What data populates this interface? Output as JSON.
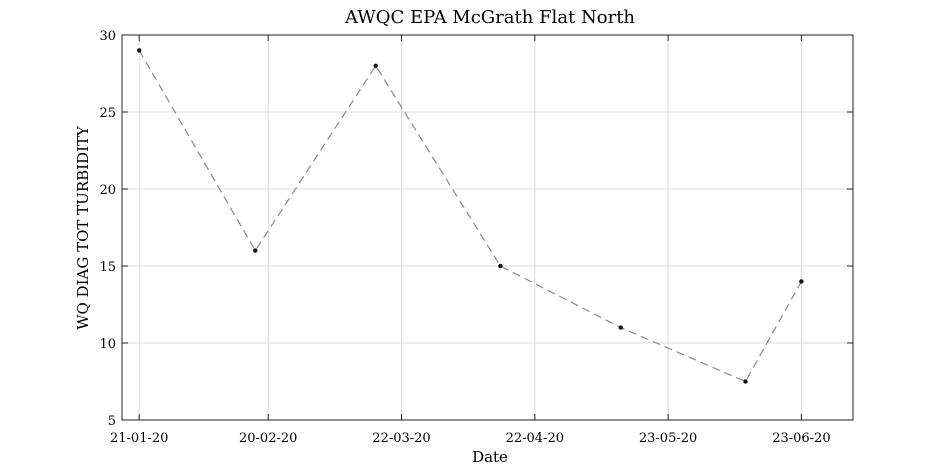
{
  "chart_data": {
    "type": "line",
    "title": "AWQC EPA McGrath Flat North",
    "xlabel": "Date",
    "ylabel": "WQ DIAG TOT TURBIDITY",
    "xlim": [
      "2020-01-17",
      "2020-07-05"
    ],
    "ylim": [
      5,
      30
    ],
    "x_ticks": [
      {
        "date": "2020-01-21",
        "label": "21-01-20"
      },
      {
        "date": "2020-02-20",
        "label": "20-02-20"
      },
      {
        "date": "2020-03-22",
        "label": "22-03-20"
      },
      {
        "date": "2020-04-22",
        "label": "22-04-20"
      },
      {
        "date": "2020-05-23",
        "label": "23-05-20"
      },
      {
        "date": "2020-06-23",
        "label": "23-06-20"
      }
    ],
    "y_ticks": [
      5,
      10,
      15,
      20,
      25,
      30
    ],
    "grid": true,
    "series": [
      {
        "color": "#8a8a8a",
        "marker_color": "#111111",
        "line_style": "dashed",
        "x": [
          "2020-01-21",
          "2020-02-17",
          "2020-03-16",
          "2020-04-14",
          "2020-05-12",
          "2020-06-10",
          "2020-06-23"
        ],
        "y": [
          29,
          16,
          28,
          15,
          11,
          7.5,
          14
        ]
      }
    ]
  }
}
